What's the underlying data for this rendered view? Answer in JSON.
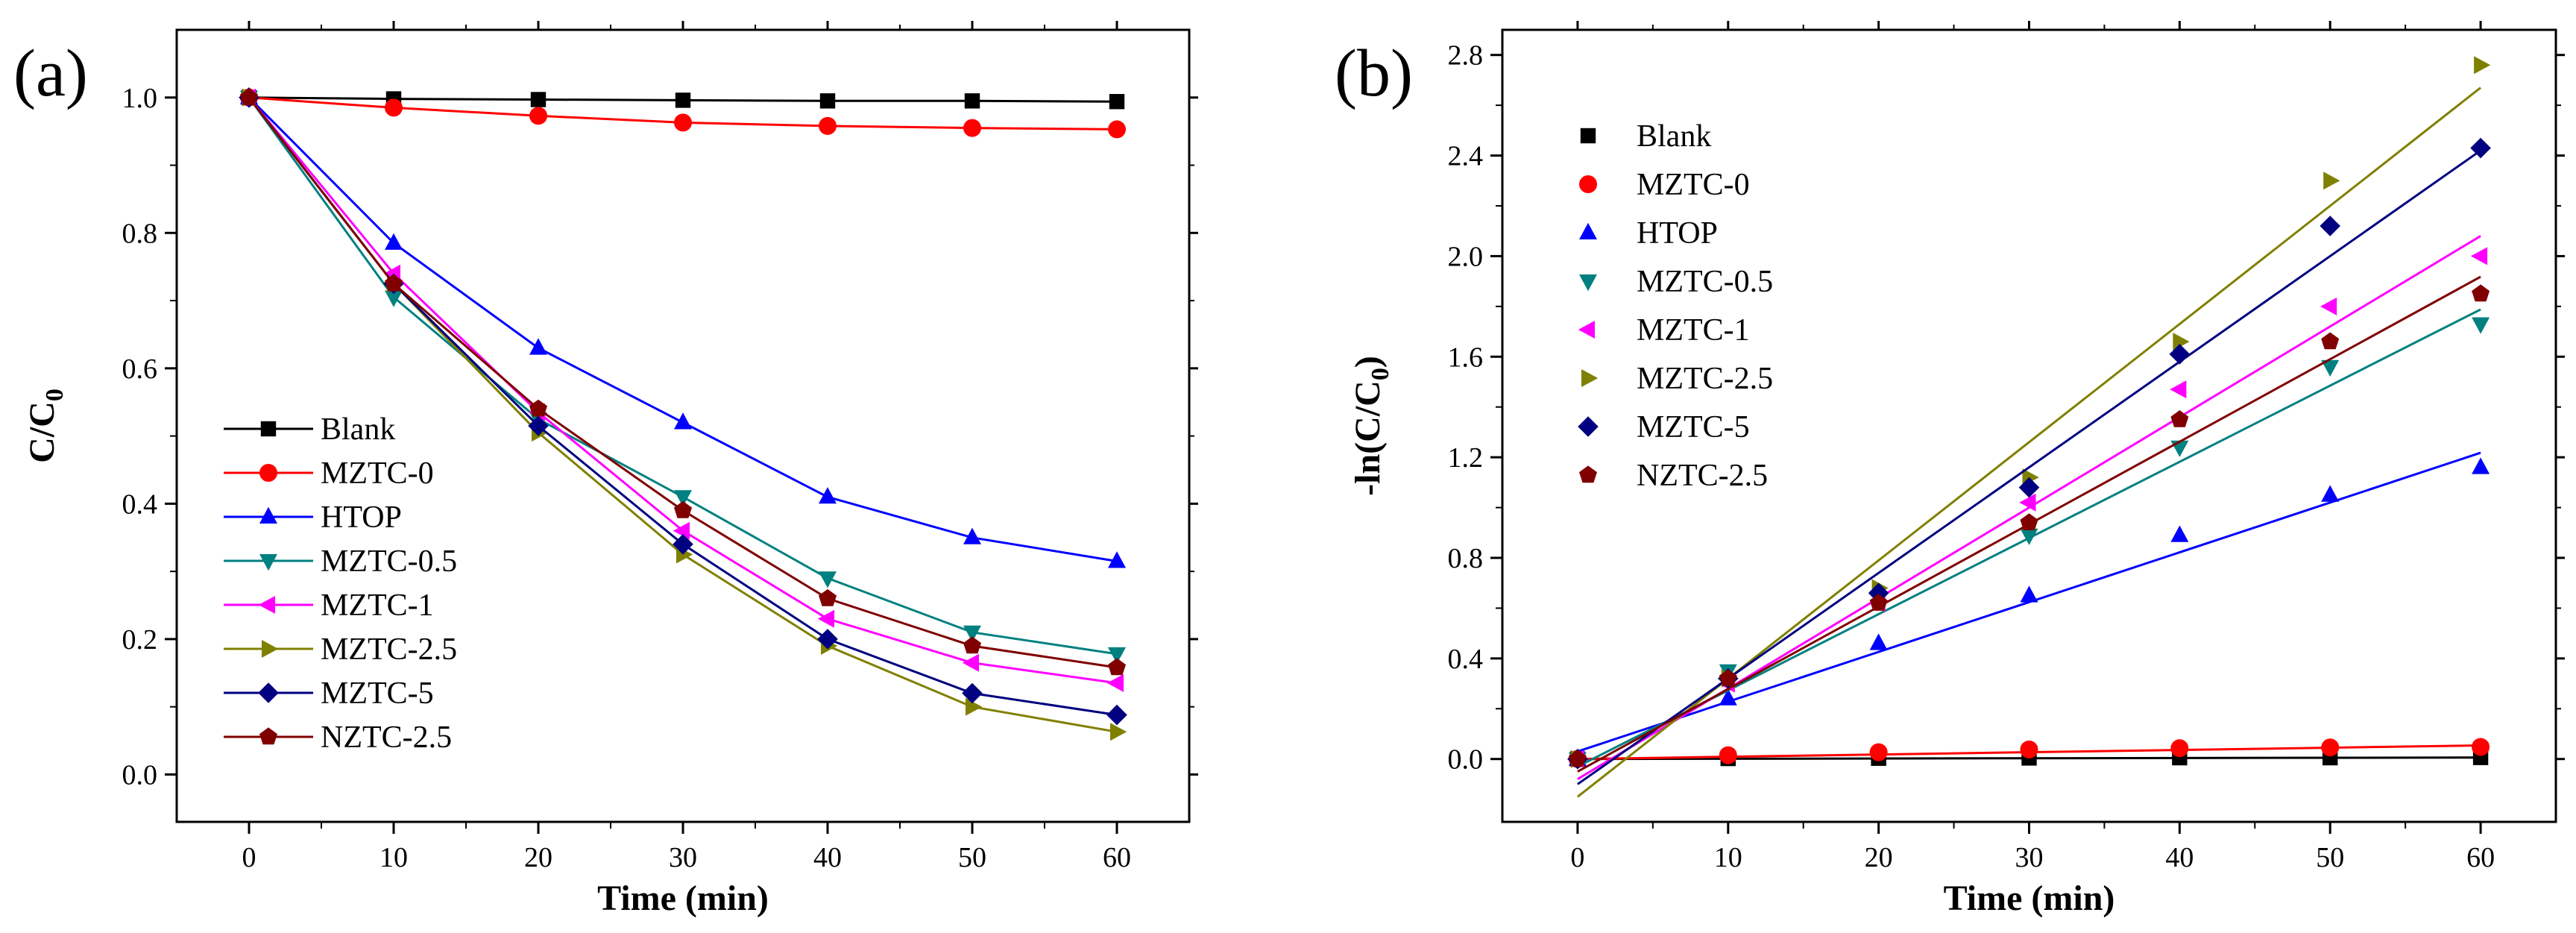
{
  "figure": {
    "panel_a_label": "(a)",
    "panel_b_label": "(b)"
  },
  "chart_data": [
    {
      "type": "line",
      "panel": "(a)",
      "title": "",
      "xlabel": "Time (min)",
      "ylabel": "C/C0",
      "xlim": [
        -5,
        65
      ],
      "ylim": [
        -0.07,
        1.1
      ],
      "x": [
        0,
        10,
        20,
        30,
        40,
        50,
        60
      ],
      "xticks": [
        0,
        10,
        20,
        30,
        40,
        50,
        60
      ],
      "yticks": [
        0.0,
        0.2,
        0.4,
        0.6,
        0.8,
        1.0
      ],
      "ytick_labels": [
        "0.0",
        "0.2",
        "0.4",
        "0.6",
        "0.8",
        "1.0"
      ],
      "legend_position": "bottom-left",
      "series": [
        {
          "name": "Blank",
          "color": "#000000",
          "marker": "square",
          "values": [
            1.0,
            0.998,
            0.997,
            0.996,
            0.995,
            0.995,
            0.994
          ]
        },
        {
          "name": "MZTC-0",
          "color": "#ff0000",
          "marker": "circle",
          "values": [
            1.0,
            0.985,
            0.973,
            0.963,
            0.958,
            0.955,
            0.953
          ]
        },
        {
          "name": "HTOP",
          "color": "#0000ff",
          "marker": "triangle-up",
          "values": [
            1.0,
            0.785,
            0.63,
            0.52,
            0.41,
            0.35,
            0.315
          ]
        },
        {
          "name": "MZTC-0.5",
          "color": "#008080",
          "marker": "triangle-down",
          "values": [
            1.0,
            0.705,
            0.525,
            0.41,
            0.29,
            0.21,
            0.178
          ]
        },
        {
          "name": "MZTC-1",
          "color": "#ff00ff",
          "marker": "triangle-left",
          "values": [
            1.0,
            0.74,
            0.535,
            0.36,
            0.23,
            0.165,
            0.135
          ]
        },
        {
          "name": "MZTC-2.5",
          "color": "#808000",
          "marker": "triangle-right",
          "values": [
            1.0,
            0.725,
            0.505,
            0.325,
            0.19,
            0.1,
            0.063
          ]
        },
        {
          "name": "MZTC-5",
          "color": "#000080",
          "marker": "diamond",
          "values": [
            1.0,
            0.725,
            0.515,
            0.34,
            0.2,
            0.12,
            0.088
          ]
        },
        {
          "name": "NZTC-2.5",
          "color": "#800000",
          "marker": "pentagon",
          "values": [
            1.0,
            0.725,
            0.54,
            0.39,
            0.26,
            0.19,
            0.158
          ]
        }
      ]
    },
    {
      "type": "scatter",
      "panel": "(b)",
      "title": "",
      "xlabel": "Time (min)",
      "ylabel": "-ln(C/C0)",
      "xlim": [
        -5,
        65
      ],
      "ylim": [
        -0.25,
        2.9
      ],
      "x": [
        0,
        10,
        20,
        30,
        40,
        50,
        60
      ],
      "xticks": [
        0,
        10,
        20,
        30,
        40,
        50,
        60
      ],
      "yticks": [
        0.0,
        0.4,
        0.8,
        1.2,
        1.6,
        2.0,
        2.4,
        2.8
      ],
      "ytick_labels": [
        "0.0",
        "0.4",
        "0.8",
        "1.2",
        "1.6",
        "2.0",
        "2.4",
        "2.8"
      ],
      "legend_position": "top-left",
      "series": [
        {
          "name": "Blank",
          "color": "#000000",
          "marker": "square",
          "values": [
            0,
            0.002,
            0.003,
            0.004,
            0.005,
            0.005,
            0.006
          ],
          "fit": [
            0.0,
            0.0001
          ]
        },
        {
          "name": "MZTC-0",
          "color": "#ff0000",
          "marker": "circle",
          "values": [
            0,
            0.015,
            0.027,
            0.038,
            0.043,
            0.046,
            0.048
          ],
          "fit": [
            0.0,
            0.0009
          ]
        },
        {
          "name": "HTOP",
          "color": "#0000ff",
          "marker": "triangle-up",
          "values": [
            0,
            0.24,
            0.46,
            0.65,
            0.89,
            1.05,
            1.16
          ],
          "fit": [
            0.03,
            0.0198
          ]
        },
        {
          "name": "MZTC-0.5",
          "color": "#008080",
          "marker": "triangle-down",
          "values": [
            0,
            0.35,
            0.64,
            0.89,
            1.24,
            1.56,
            1.73
          ],
          "fit": [
            -0.03,
            0.0303
          ]
        },
        {
          "name": "MZTC-1",
          "color": "#ff00ff",
          "marker": "triangle-left",
          "values": [
            0,
            0.3,
            0.62,
            1.02,
            1.47,
            1.8,
            2.0
          ],
          "fit": [
            -0.08,
            0.036
          ]
        },
        {
          "name": "MZTC-2.5",
          "color": "#808000",
          "marker": "triangle-right",
          "values": [
            0,
            0.32,
            0.68,
            1.12,
            1.66,
            2.3,
            2.76
          ],
          "fit": [
            -0.15,
            0.047
          ]
        },
        {
          "name": "MZTC-5",
          "color": "#000080",
          "marker": "diamond",
          "values": [
            0,
            0.32,
            0.66,
            1.08,
            1.61,
            2.12,
            2.43
          ],
          "fit": [
            -0.1,
            0.042
          ]
        },
        {
          "name": "NZTC-2.5",
          "color": "#800000",
          "marker": "pentagon",
          "values": [
            0,
            0.32,
            0.62,
            0.94,
            1.35,
            1.66,
            1.85
          ],
          "fit": [
            -0.05,
            0.0328
          ]
        }
      ]
    }
  ]
}
